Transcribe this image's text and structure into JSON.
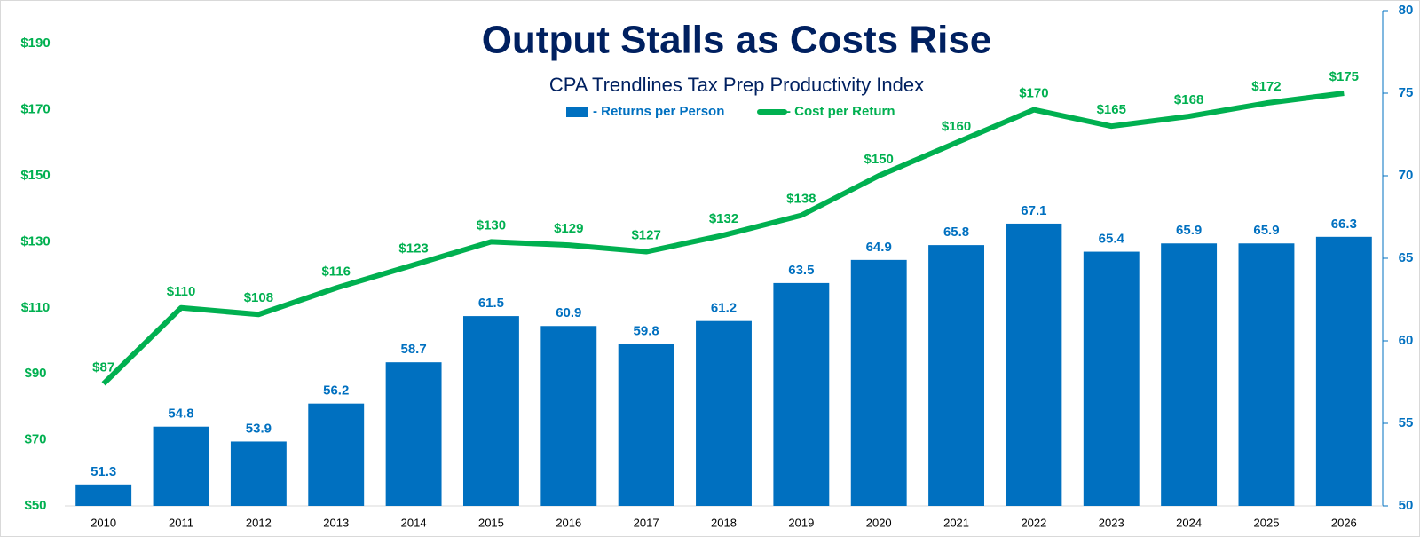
{
  "chart_data": {
    "type": "bar-line",
    "title": "Output Stalls as Costs Rise",
    "subtitle": "CPA Trendlines Tax Prep Productivity Index",
    "categories": [
      "2010",
      "2011",
      "2012",
      "2013",
      "2014",
      "2015",
      "2016",
      "2017",
      "2018",
      "2019",
      "2020",
      "2021",
      "2022",
      "2023",
      "2024",
      "2025",
      "2026"
    ],
    "series": [
      {
        "name": "- Returns per Person",
        "type": "bar",
        "axis": "y2",
        "color": "#0070c0",
        "values": [
          51.3,
          54.8,
          53.9,
          56.2,
          58.7,
          61.5,
          60.9,
          59.8,
          61.2,
          63.5,
          64.9,
          65.8,
          67.1,
          65.4,
          65.9,
          65.9,
          66.3
        ]
      },
      {
        "name": "- Cost per Return",
        "type": "line",
        "color": "#00b050",
        "values": [
          87,
          110,
          108,
          116,
          123,
          130,
          129,
          127,
          132,
          138,
          150,
          160,
          170,
          165,
          168,
          172,
          175
        ],
        "value_labels": [
          "$87",
          "$110",
          "$108",
          "$116",
          "$123",
          "$130",
          "$129",
          "$127",
          "$132",
          "$138",
          "$150",
          "$160",
          "$170",
          "$165",
          "$168",
          "$172",
          "$175"
        ]
      }
    ],
    "ylim": [
      50,
      200
    ],
    "yticks": [
      {
        "value": 50,
        "label": "$50"
      },
      {
        "value": 70,
        "label": "$70"
      },
      {
        "value": 90,
        "label": "$90"
      },
      {
        "value": 110,
        "label": "$110"
      },
      {
        "value": 130,
        "label": "$130"
      },
      {
        "value": 150,
        "label": "$150"
      },
      {
        "value": 170,
        "label": "$170"
      },
      {
        "value": 190,
        "label": "$190"
      }
    ],
    "y2lim": [
      50,
      80
    ],
    "y2ticks": [
      50,
      55,
      60,
      65,
      70,
      75,
      80
    ],
    "grid": false
  }
}
